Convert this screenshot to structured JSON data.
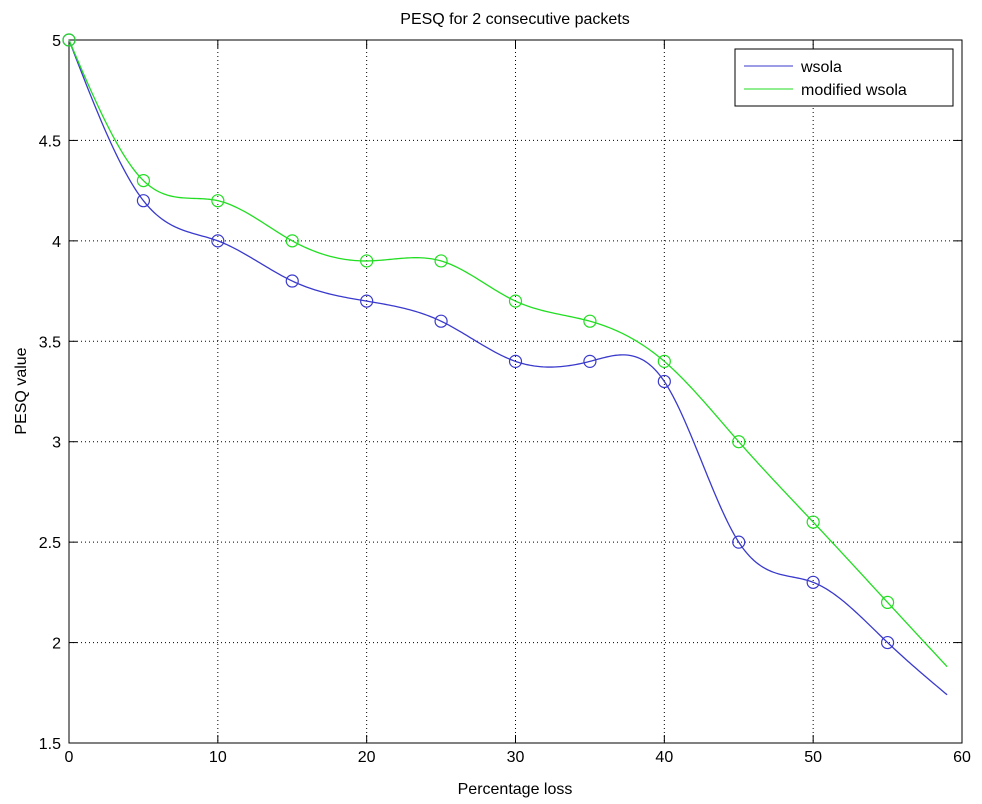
{
  "chart_data": {
    "type": "line",
    "title": "PESQ for 2 consecutive packets",
    "xlabel": "Percentage loss",
    "ylabel": "PESQ value",
    "xlim": [
      0,
      60
    ],
    "ylim": [
      1.5,
      5
    ],
    "xticks": [
      0,
      10,
      20,
      30,
      40,
      50,
      60
    ],
    "xtick_labels": [
      "0",
      "10",
      "20",
      "30",
      "40",
      "50",
      "60"
    ],
    "yticks": [
      1.5,
      2,
      2.5,
      3,
      3.5,
      4,
      4.5,
      5
    ],
    "ytick_labels": [
      "1.5",
      "2",
      "2.5",
      "3",
      "3.5",
      "4",
      "4.5",
      "5"
    ],
    "grid": true,
    "grid_style": "dotted",
    "legend_position": "top-right",
    "marker": "circle",
    "curve": "smooth",
    "curve_x_end": 59,
    "series": [
      {
        "name": "wsola",
        "color": "#3a3acc",
        "x": [
          0,
          5,
          10,
          15,
          20,
          25,
          30,
          35,
          40,
          45,
          50,
          55
        ],
        "y": [
          5.0,
          4.2,
          4.0,
          3.8,
          3.7,
          3.6,
          3.4,
          3.4,
          3.3,
          2.5,
          2.3,
          2.0
        ],
        "curve_y_end": 1.74
      },
      {
        "name": "modified wsola",
        "color": "#22dd22",
        "x": [
          0,
          5,
          10,
          15,
          20,
          25,
          30,
          35,
          40,
          45,
          50,
          55
        ],
        "y": [
          5.0,
          4.3,
          4.2,
          4.0,
          3.9,
          3.9,
          3.7,
          3.6,
          3.4,
          3.0,
          2.6,
          2.2
        ],
        "curve_y_end": 1.88
      }
    ]
  }
}
